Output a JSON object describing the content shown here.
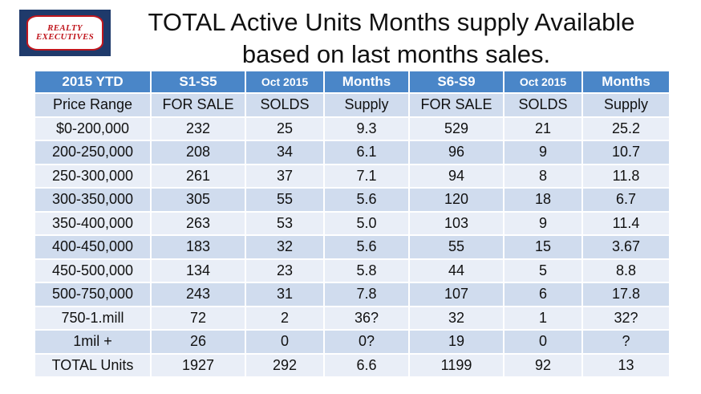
{
  "logo": {
    "line1": "REALTY",
    "line2": "EXECUTIVES"
  },
  "title": {
    "line1": "TOTAL Active Units Months supply Available",
    "line2": "based on last months sales."
  },
  "table": {
    "headers": [
      "2015 YTD",
      "S1-S5",
      "Oct 2015",
      "Months",
      "S6-S9",
      "Oct 2015",
      "Months"
    ],
    "rows": [
      [
        "Price Range",
        "FOR SALE",
        "SOLDS",
        "Supply",
        "FOR SALE",
        "SOLDS",
        "Supply"
      ],
      [
        "$0-200,000",
        "232",
        "25",
        "9.3",
        "529",
        "21",
        "25.2"
      ],
      [
        "200-250,000",
        "208",
        "34",
        "6.1",
        "96",
        "9",
        "10.7"
      ],
      [
        "250-300,000",
        "261",
        "37",
        "7.1",
        "94",
        "8",
        "11.8"
      ],
      [
        "300-350,000",
        "305",
        "55",
        "5.6",
        "120",
        "18",
        "6.7"
      ],
      [
        "350-400,000",
        "263",
        "53",
        "5.0",
        "103",
        "9",
        "11.4"
      ],
      [
        "400-450,000",
        "183",
        "32",
        "5.6",
        "55",
        "15",
        "3.67"
      ],
      [
        "450-500,000",
        "134",
        "23",
        "5.8",
        "44",
        "5",
        "8.8"
      ],
      [
        "500-750,000",
        "243",
        "31",
        "7.8",
        "107",
        "6",
        "17.8"
      ],
      [
        "750-1.mill",
        "72",
        "2",
        "36?",
        "32",
        "1",
        "32?"
      ],
      [
        "1mil +",
        "26",
        "0",
        "0?",
        "19",
        "0",
        "?"
      ],
      [
        "TOTAL Units",
        "1927",
        "292",
        "6.6",
        "1199",
        "92",
        "13"
      ]
    ]
  },
  "colors": {
    "header": "#4a86c8",
    "row_dark": "#d0dcee",
    "row_light": "#e9eef7",
    "logo_bg": "#1f3a6b",
    "logo_red": "#c0161d"
  }
}
